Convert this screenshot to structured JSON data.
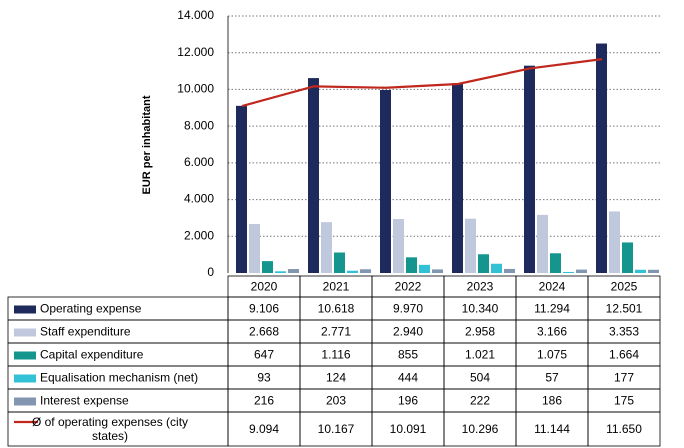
{
  "chart_data": {
    "type": "bar",
    "y_label": "EUR per inhabitant",
    "categories": [
      "2020",
      "2021",
      "2022",
      "2023",
      "2024",
      "2025"
    ],
    "ylim": [
      0,
      14000
    ],
    "yticks": [
      0,
      {
        "value": 2000,
        "label": "2.000"
      },
      {
        "value": 4000,
        "label": "4.000"
      },
      {
        "value": 6000,
        "label": "6.000"
      },
      {
        "value": 8000,
        "label": "8.000"
      },
      {
        "value": 10000,
        "label": "10.000"
      },
      {
        "value": 12000,
        "label": "12.000"
      },
      {
        "value": 14000,
        "label": "14.000"
      }
    ],
    "grid": true,
    "series": [
      {
        "name": "Operating expense",
        "color": "#1f2a5c",
        "values": [
          9106,
          10618,
          9970,
          10340,
          11294,
          12501
        ],
        "value_labels": [
          "9.106",
          "10.618",
          "9.970",
          "10.340",
          "11.294",
          "12.501"
        ]
      },
      {
        "name": "Staff expenditure",
        "color": "#bfc8dc",
        "values": [
          2668,
          2771,
          2940,
          2958,
          3166,
          3353
        ],
        "value_labels": [
          "2.668",
          "2.771",
          "2.940",
          "2.958",
          "3.166",
          "3.353"
        ]
      },
      {
        "name": "Capital expenditure",
        "color": "#14968f",
        "values": [
          647,
          1116,
          855,
          1021,
          1075,
          1664
        ],
        "value_labels": [
          "647",
          "1.116",
          "855",
          "1.021",
          "1.075",
          "1.664"
        ]
      },
      {
        "name": "Equalisation mechanism (net)",
        "color": "#33c1d6",
        "values": [
          93,
          124,
          444,
          504,
          57,
          177
        ],
        "value_labels": [
          "93",
          "124",
          "444",
          "504",
          "57",
          "177"
        ]
      },
      {
        "name": "Interest expense",
        "color": "#8396b0",
        "values": [
          216,
          203,
          196,
          222,
          186,
          175
        ],
        "value_labels": [
          "216",
          "203",
          "196",
          "222",
          "186",
          "175"
        ]
      },
      {
        "name": "Ø of operating expenses (city states)",
        "type": "line",
        "color": "#c0281e",
        "values": [
          9094,
          10167,
          10091,
          10296,
          11144,
          11650
        ],
        "value_labels": [
          "9.094",
          "10.167",
          "10.091",
          "10.296",
          "11.144",
          "11.650"
        ]
      }
    ]
  }
}
